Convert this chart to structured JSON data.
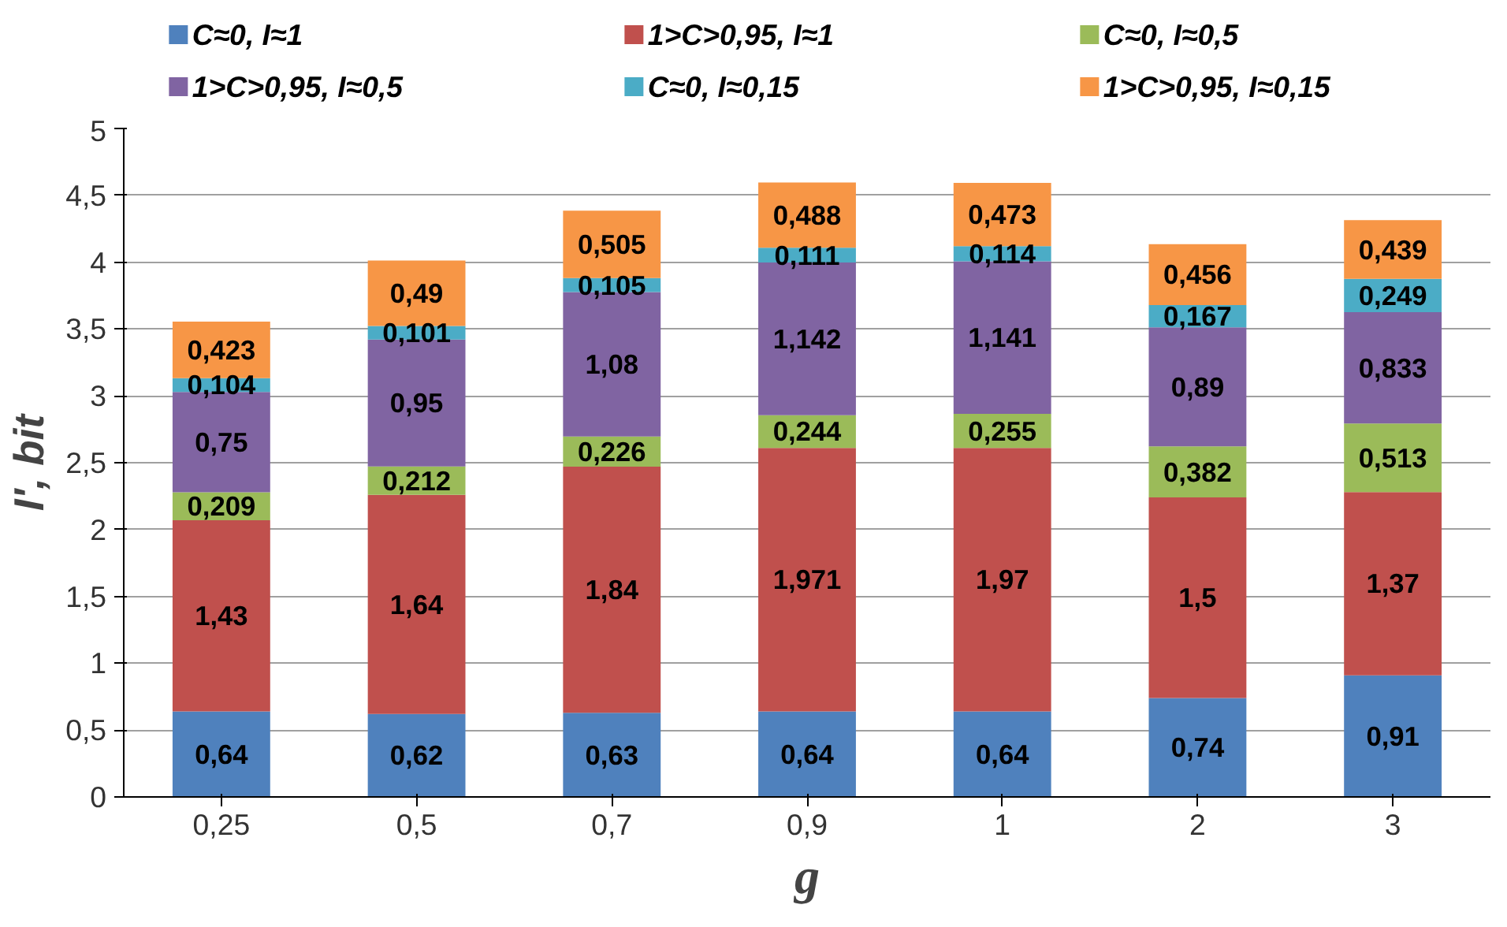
{
  "chart_data": {
    "type": "bar",
    "stacked": true,
    "xlabel": "g",
    "ylabel": "I', bit",
    "categories": [
      "0,25",
      "0,5",
      "0,7",
      "0,9",
      "1",
      "2",
      "3"
    ],
    "ylim": [
      0,
      5
    ],
    "yticks": [
      0,
      {
        "value": 0.5,
        "label": "0,5"
      },
      1,
      {
        "value": 1.5,
        "label": "1,5"
      },
      2,
      {
        "value": 2.5,
        "label": "2,5"
      },
      3,
      {
        "value": 3.5,
        "label": "3,5"
      },
      4,
      {
        "value": 4.5,
        "label": "4,5"
      },
      5
    ],
    "grid": "y",
    "legend": "top",
    "series": [
      {
        "name": "C≈0, I≈1",
        "color": "#4f81bd",
        "values": [
          0.64,
          0.62,
          0.63,
          0.64,
          0.64,
          0.74,
          0.91
        ],
        "value_labels": [
          "0,64",
          "0,62",
          "0,63",
          "0,64",
          "0,64",
          "0,74",
          "0,91"
        ]
      },
      {
        "name": "1>C>0,95, I≈1",
        "color": "#c0504d",
        "values": [
          1.43,
          1.64,
          1.84,
          1.971,
          1.97,
          1.5,
          1.37
        ],
        "value_labels": [
          "1,43",
          "1,64",
          "1,84",
          "1,971",
          "1,97",
          "1,5",
          "1,37"
        ]
      },
      {
        "name": "C≈0, I≈0,5",
        "color": "#9bbb59",
        "values": [
          0.209,
          0.212,
          0.226,
          0.244,
          0.255,
          0.382,
          0.513
        ],
        "value_labels": [
          "0,209",
          "0,212",
          "0,226",
          "0,244",
          "0,255",
          "0,382",
          "0,513"
        ]
      },
      {
        "name": "1>C>0,95, I≈0,5",
        "color": "#8064a2",
        "values": [
          0.75,
          0.95,
          1.08,
          1.142,
          1.141,
          0.89,
          0.833
        ],
        "value_labels": [
          "0,75",
          "0,95",
          "1,08",
          "1,142",
          "1,141",
          "0,89",
          "0,833"
        ]
      },
      {
        "name": "C≈0, I≈0,15",
        "color": "#4bacc6",
        "values": [
          0.104,
          0.101,
          0.105,
          0.111,
          0.114,
          0.167,
          0.249
        ],
        "value_labels": [
          "0,104",
          "0,101",
          "0,105",
          "0,111",
          "0,114",
          "0,167",
          "0,249"
        ]
      },
      {
        "name": "1>C>0,95, I≈0,15",
        "color": "#f79646",
        "values": [
          0.423,
          0.49,
          0.505,
          0.488,
          0.473,
          0.456,
          0.439
        ],
        "value_labels": [
          "0,423",
          "0,49",
          "0,505",
          "0,488",
          "0,473",
          "0,456",
          "0,439"
        ]
      }
    ]
  }
}
